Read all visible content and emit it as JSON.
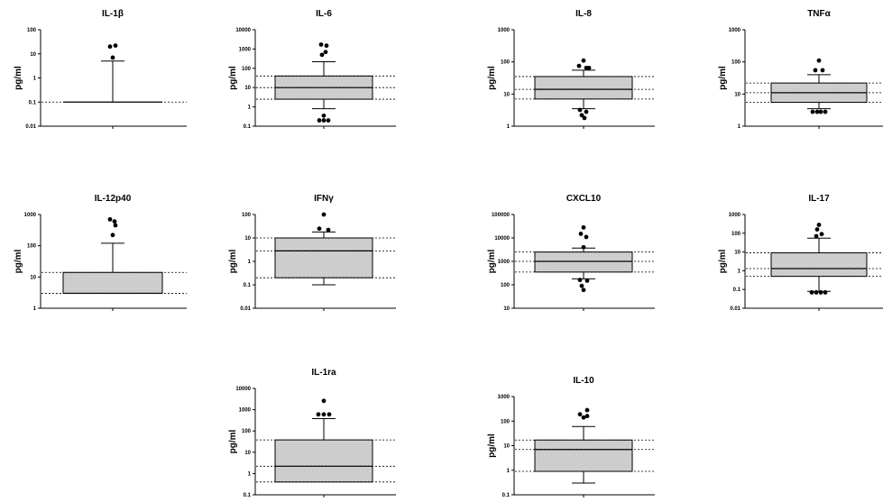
{
  "figure": {
    "background": "#ffffff",
    "box_fill": "#d9d9d9",
    "hatch_color": "#a8a8a8",
    "line_color": "#000000"
  },
  "chart_data": [
    {
      "type": "box",
      "title": "IL-1β",
      "ylabel": "pg/ml",
      "yscale": "log",
      "ylim": [
        0.01,
        100
      ],
      "yticks": [
        "0.01",
        "0.1",
        "1",
        "10",
        "100"
      ],
      "q1": 0.1,
      "median": 0.1,
      "q3": 0.1,
      "whisker_low": 0.1,
      "whisker_high": 5,
      "ref_lines": [
        0.1
      ],
      "outliers": [
        [
          -3,
          20
        ],
        [
          3,
          22
        ],
        [
          0,
          7
        ]
      ]
    },
    {
      "type": "box",
      "title": "IL-6",
      "ylabel": "pg/ml",
      "yscale": "log",
      "ylim": [
        0.1,
        10000
      ],
      "yticks": [
        "0.1",
        "1",
        "10",
        "100",
        "1000",
        "10000"
      ],
      "q1": 2.5,
      "median": 10,
      "q3": 40,
      "whisker_low": 0.8,
      "whisker_high": 220,
      "ref_lines": [
        2.5,
        10,
        40
      ],
      "outliers": [
        [
          -3,
          1700
        ],
        [
          3,
          1500
        ],
        [
          -2,
          500
        ],
        [
          2,
          700
        ],
        [
          0,
          0.35
        ],
        [
          -5,
          0.2
        ],
        [
          0,
          0.2
        ],
        [
          5,
          0.2
        ]
      ]
    },
    {
      "type": "box",
      "title": "IL-8",
      "ylabel": "pg/ml",
      "yscale": "log",
      "ylim": [
        1,
        1000
      ],
      "yticks": [
        "1",
        "10",
        "100",
        "1000"
      ],
      "q1": 7,
      "median": 14,
      "q3": 35,
      "whisker_low": 3.5,
      "whisker_high": 55,
      "ref_lines": [
        7,
        14,
        35
      ],
      "outliers": [
        [
          0,
          110
        ],
        [
          -5,
          75
        ],
        [
          3,
          65
        ],
        [
          6,
          65
        ],
        [
          -4,
          3.2
        ],
        [
          3,
          2.8
        ],
        [
          -2,
          2.2
        ],
        [
          1,
          1.8
        ]
      ]
    },
    {
      "type": "box",
      "title": "TNFα",
      "ylabel": "pg/ml",
      "yscale": "log",
      "ylim": [
        1,
        1000
      ],
      "yticks": [
        "1",
        "10",
        "100",
        "1000"
      ],
      "q1": 5.5,
      "median": 11,
      "q3": 22,
      "whisker_low": 3.5,
      "whisker_high": 40,
      "ref_lines": [
        5.5,
        11,
        22
      ],
      "outliers": [
        [
          0,
          110
        ],
        [
          -4,
          55
        ],
        [
          4,
          55
        ],
        [
          -7,
          2.8
        ],
        [
          -2,
          2.8
        ],
        [
          2,
          2.8
        ],
        [
          7,
          2.8
        ]
      ]
    },
    {
      "type": "box",
      "title": "IL-12p40",
      "ylabel": "pg/ml",
      "yscale": "log",
      "ylim": [
        1,
        1000
      ],
      "yticks": [
        "1",
        "10",
        "100",
        "1000"
      ],
      "q1": 3,
      "median": 3,
      "q3": 14,
      "whisker_low": 3,
      "whisker_high": 120,
      "ref_lines": [
        3,
        14
      ],
      "outliers": [
        [
          -3,
          700
        ],
        [
          2,
          600
        ],
        [
          3,
          450
        ],
        [
          0,
          220
        ]
      ]
    },
    {
      "type": "box",
      "title": "IFNγ",
      "ylabel": "pg/ml",
      "yscale": "log",
      "ylim": [
        0.01,
        100
      ],
      "yticks": [
        "0.01",
        "0.1",
        "1",
        "10",
        "100"
      ],
      "q1": 0.2,
      "median": 2.8,
      "q3": 10,
      "whisker_low": 0.1,
      "whisker_high": 18,
      "ref_lines": [
        0.2,
        2.8,
        10
      ],
      "outliers": [
        [
          0,
          100
        ],
        [
          -5,
          25
        ],
        [
          5,
          22
        ]
      ]
    },
    {
      "type": "box",
      "title": "CXCL10",
      "ylabel": "pg/ml",
      "yscale": "log",
      "ylim": [
        10,
        100000
      ],
      "yticks": [
        "10",
        "100",
        "1000",
        "10000",
        "100000"
      ],
      "q1": 350,
      "median": 1000,
      "q3": 2500,
      "whisker_low": 180,
      "whisker_high": 3700,
      "ref_lines": [
        350,
        1000,
        2500
      ],
      "outliers": [
        [
          0,
          28000
        ],
        [
          -3,
          15000
        ],
        [
          3,
          11000
        ],
        [
          0,
          4000
        ],
        [
          -4,
          160
        ],
        [
          4,
          150
        ],
        [
          -2,
          90
        ],
        [
          0,
          60
        ]
      ]
    },
    {
      "type": "box",
      "title": "IL-17",
      "ylabel": "pg/ml",
      "yscale": "log",
      "ylim": [
        0.01,
        1000
      ],
      "yticks": [
        "0.01",
        "0.1",
        "1",
        "10",
        "100",
        "1000"
      ],
      "q1": 0.5,
      "median": 1.3,
      "q3": 9,
      "whisker_low": 0.08,
      "whisker_high": 55,
      "ref_lines": [
        0.5,
        1.3,
        9
      ],
      "outliers": [
        [
          0,
          280
        ],
        [
          -2,
          160
        ],
        [
          3,
          90
        ],
        [
          -3,
          70
        ],
        [
          -8,
          0.07
        ],
        [
          -3,
          0.07
        ],
        [
          2,
          0.07
        ],
        [
          7,
          0.07
        ]
      ]
    },
    {
      "type": "box",
      "title": "IL-1ra",
      "ylabel": "pg/ml",
      "yscale": "log",
      "ylim": [
        0.1,
        10000
      ],
      "yticks": [
        "0.1",
        "1",
        "10",
        "100",
        "1000",
        "10000"
      ],
      "q1": 0.4,
      "median": 2.2,
      "q3": 38,
      "whisker_low": 0.4,
      "whisker_high": 380,
      "ref_lines": [
        0.4,
        2.2,
        38
      ],
      "outliers": [
        [
          0,
          2600
        ],
        [
          -6,
          600
        ],
        [
          0,
          600
        ],
        [
          6,
          600
        ]
      ]
    },
    {
      "type": "box",
      "title": "IL-10",
      "ylabel": "pg/ml",
      "yscale": "log",
      "ylim": [
        0.1,
        1000
      ],
      "yticks": [
        "0.1",
        "1",
        "10",
        "100",
        "1000"
      ],
      "q1": 0.9,
      "median": 7,
      "q3": 17,
      "whisker_low": 0.3,
      "whisker_high": 60,
      "ref_lines": [
        0.9,
        7,
        17
      ],
      "outliers": [
        [
          4,
          280
        ],
        [
          -4,
          190
        ],
        [
          4,
          160
        ],
        [
          0,
          140
        ]
      ]
    }
  ]
}
